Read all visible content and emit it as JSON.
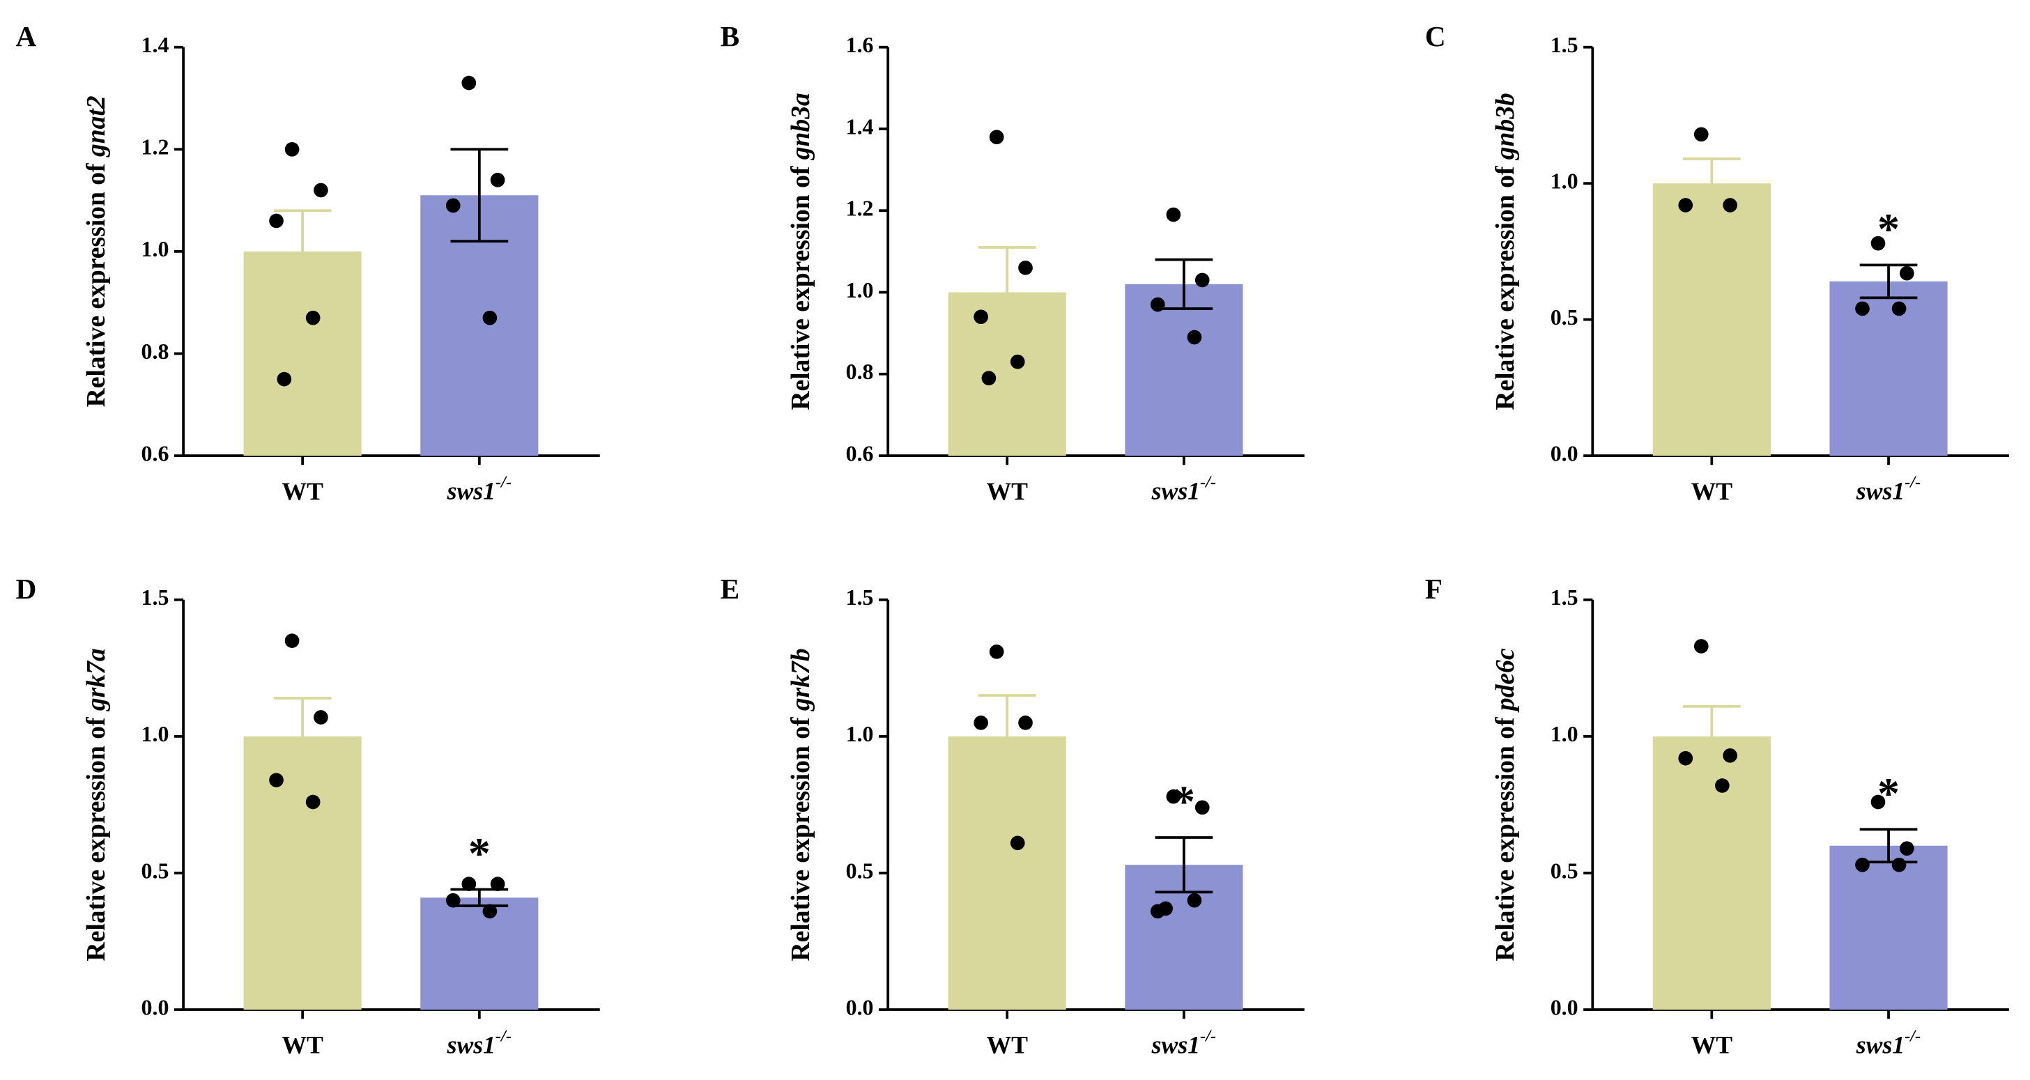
{
  "chart_data": [
    {
      "type": "bar",
      "panel": "A",
      "ylabel": {
        "text": "Relative expression of",
        "gene": "gnat2"
      },
      "ylim": [
        0.6,
        1.4
      ],
      "yticks": [
        0.6,
        0.8,
        {
          "value": 1,
          "label": "1.0"
        },
        1.2,
        1.4
      ],
      "bars": [
        {
          "category": "WT",
          "value": 1.0,
          "error": 0.08,
          "color": "#d9d89c",
          "error_color": "#d9d89c",
          "points": [
            1.2,
            1.12,
            1.06,
            0.87,
            0.75
          ]
        },
        {
          "category": {
            "label": "sws1",
            "sup": "-/-"
          },
          "value": 1.11,
          "error": 0.09,
          "color": "#8c92d2",
          "error_color": "#000000",
          "points": [
            1.33,
            1.14,
            1.09,
            0.87
          ]
        }
      ]
    },
    {
      "type": "bar",
      "panel": "B",
      "ylabel": {
        "text": "Relative expression of",
        "gene": "gnb3a"
      },
      "ylim": [
        0.6,
        1.6
      ],
      "yticks": [
        0.6,
        0.8,
        {
          "value": 1,
          "label": "1.0"
        },
        1.2,
        1.4,
        1.6
      ],
      "bars": [
        {
          "category": "WT",
          "value": 1.0,
          "error": 0.11,
          "color": "#d9d89c",
          "error_color": "#d9d89c",
          "points": [
            1.38,
            1.06,
            0.94,
            0.83,
            0.79
          ]
        },
        {
          "category": {
            "label": "sws1",
            "sup": "-/-"
          },
          "value": 1.02,
          "error": 0.06,
          "color": "#8c92d2",
          "error_color": "#000000",
          "points": [
            1.19,
            1.03,
            0.97,
            0.89
          ]
        }
      ]
    },
    {
      "type": "bar",
      "panel": "C",
      "ylabel": {
        "text": "Relative expression of",
        "gene": "gnb3b"
      },
      "ylim": [
        0,
        1.5
      ],
      "yticks": [
        {
          "value": 0,
          "label": "0.0"
        },
        0.5,
        {
          "value": 1,
          "label": "1.0"
        },
        1.5
      ],
      "bars": [
        {
          "category": "WT",
          "value": 1.0,
          "error": 0.09,
          "color": "#d9d89c",
          "error_color": "#d9d89c",
          "points": [
            1.18,
            0.92,
            0.92
          ]
        },
        {
          "category": {
            "label": "sws1",
            "sup": "-/-"
          },
          "value": 0.64,
          "error": 0.06,
          "color": "#8c92d2",
          "error_color": "#000000",
          "points": [
            0.78,
            0.67,
            0.54,
            0.54
          ],
          "annotation": "*"
        }
      ]
    },
    {
      "type": "bar",
      "panel": "D",
      "ylabel": {
        "text": "Relative expression of",
        "gene": "grk7a"
      },
      "ylim": [
        0,
        1.5
      ],
      "yticks": [
        {
          "value": 0,
          "label": "0.0"
        },
        0.5,
        {
          "value": 1,
          "label": "1.0"
        },
        1.5
      ],
      "bars": [
        {
          "category": "WT",
          "value": 1.0,
          "error": 0.14,
          "color": "#d9d89c",
          "error_color": "#d9d89c",
          "points": [
            1.35,
            1.07,
            0.84,
            0.76
          ]
        },
        {
          "category": {
            "label": "sws1",
            "sup": "-/-"
          },
          "value": 0.41,
          "error": 0.03,
          "color": "#8c92d2",
          "error_color": "#000000",
          "points": [
            0.46,
            0.46,
            0.4,
            0.36
          ],
          "annotation": "*"
        }
      ]
    },
    {
      "type": "bar",
      "panel": "E",
      "ylabel": {
        "text": "Relative expression of",
        "gene": "grk7b"
      },
      "ylim": [
        0,
        1.5
      ],
      "yticks": [
        {
          "value": 0,
          "label": "0.0"
        },
        0.5,
        {
          "value": 1,
          "label": "1.0"
        },
        1.5
      ],
      "bars": [
        {
          "category": "WT",
          "value": 1.0,
          "error": 0.15,
          "color": "#d9d89c",
          "error_color": "#d9d89c",
          "points": [
            1.31,
            1.05,
            1.05,
            0.61
          ]
        },
        {
          "category": {
            "label": "sws1",
            "sup": "-/-"
          },
          "value": 0.53,
          "error": 0.1,
          "color": "#8c92d2",
          "error_color": "#000000",
          "points": [
            0.78,
            0.74,
            0.36,
            0.4,
            0.37
          ],
          "annotation": "*"
        }
      ]
    },
    {
      "type": "bar",
      "panel": "F",
      "ylabel": {
        "text": "Relative expression of",
        "gene": "pde6c"
      },
      "ylim": [
        0,
        1.5
      ],
      "yticks": [
        {
          "value": 0,
          "label": "0.0"
        },
        0.5,
        {
          "value": 1,
          "label": "1.0"
        },
        1.5
      ],
      "bars": [
        {
          "category": "WT",
          "value": 1.0,
          "error": 0.11,
          "color": "#d9d89c",
          "error_color": "#d9d89c",
          "points": [
            1.33,
            0.93,
            0.92,
            0.82
          ]
        },
        {
          "category": {
            "label": "sws1",
            "sup": "-/-"
          },
          "value": 0.6,
          "error": 0.06,
          "color": "#8c92d2",
          "error_color": "#000000",
          "points": [
            0.76,
            0.59,
            0.53,
            0.53
          ],
          "annotation": "*"
        }
      ]
    }
  ]
}
